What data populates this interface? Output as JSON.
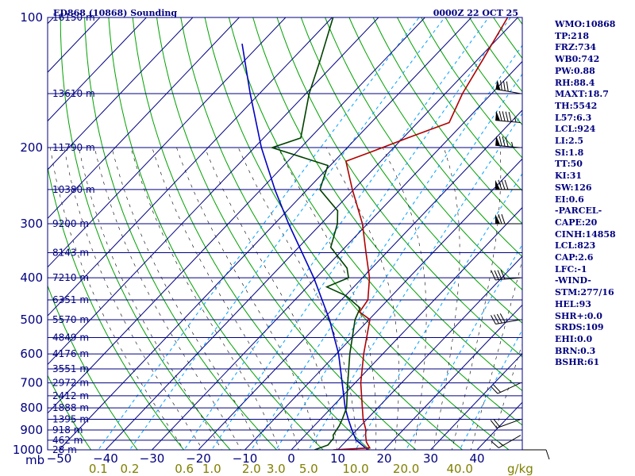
{
  "chart_data": {
    "type": "skew-t log-p sounding",
    "title_left": "ED868 (10868) Sounding",
    "title_right": "0000Z 22 OCT 25",
    "pressure_axis_labels": [
      {
        "p": 100,
        "label": "100"
      },
      {
        "p": 200,
        "label": "200"
      },
      {
        "p": 300,
        "label": "300"
      },
      {
        "p": 400,
        "label": "400"
      },
      {
        "p": 500,
        "label": "500"
      },
      {
        "p": 600,
        "label": "600"
      },
      {
        "p": 700,
        "label": "700"
      },
      {
        "p": 800,
        "label": "800"
      },
      {
        "p": 900,
        "label": "900"
      },
      {
        "p": 1000,
        "label": "1000"
      }
    ],
    "pressure_axis_unit": "mb",
    "height_levels": [
      {
        "p": 100,
        "label": "16150 m"
      },
      {
        "p": 150,
        "label": "13610 m"
      },
      {
        "p": 200,
        "label": "11790 m"
      },
      {
        "p": 250,
        "label": "10380 m"
      },
      {
        "p": 300,
        "label": "9200 m"
      },
      {
        "p": 350,
        "label": "8143 m"
      },
      {
        "p": 400,
        "label": "7210 m"
      },
      {
        "p": 450,
        "label": "6351 m"
      },
      {
        "p": 500,
        "label": "5570 m"
      },
      {
        "p": 550,
        "label": "4849 m"
      },
      {
        "p": 600,
        "label": "4176 m"
      },
      {
        "p": 650,
        "label": "3551 m"
      },
      {
        "p": 700,
        "label": "2972 m"
      },
      {
        "p": 750,
        "label": "2412 m"
      },
      {
        "p": 800,
        "label": "1888 m"
      },
      {
        "p": 850,
        "label": "1395 m"
      },
      {
        "p": 900,
        "label": "918 m"
      },
      {
        "p": 950,
        "label": "462 m"
      },
      {
        "p": 1000,
        "label": "28 m"
      }
    ],
    "temperature_ticks": [
      -50,
      -40,
      -30,
      -20,
      -10,
      0,
      10,
      20,
      30,
      40
    ],
    "temperature_tick_labels": [
      "−50",
      "−40",
      "−30",
      "−20",
      "−10",
      "0",
      "10",
      "20",
      "30",
      "40"
    ],
    "temperature_range_c": [
      -50,
      50
    ],
    "mixing_ratio_labels": [
      "0.1",
      "0.2",
      "0.6",
      "1.0",
      "2.0",
      "3.0",
      "5.0",
      "10.0",
      "20.0",
      "40.0"
    ],
    "mixing_ratio_values": [
      0.1,
      0.2,
      0.6,
      1.0,
      2.0,
      3.0,
      5.0,
      10.0,
      20.0,
      40.0
    ],
    "mixing_ratio_unit": "g/kg",
    "temperature_profile": [
      {
        "p": 1000,
        "t": 9.0
      },
      {
        "p": 990,
        "t": 16.5
      },
      {
        "p": 960,
        "t": 14.6
      },
      {
        "p": 925,
        "t": 13.0
      },
      {
        "p": 900,
        "t": 12.0
      },
      {
        "p": 850,
        "t": 9.2
      },
      {
        "p": 800,
        "t": 6.7
      },
      {
        "p": 700,
        "t": 1.2
      },
      {
        "p": 600,
        "t": -4.1
      },
      {
        "p": 500,
        "t": -9.8
      },
      {
        "p": 480,
        "t": -13.6
      },
      {
        "p": 450,
        "t": -14.3
      },
      {
        "p": 400,
        "t": -18.5
      },
      {
        "p": 350,
        "t": -24.4
      },
      {
        "p": 300,
        "t": -31.1
      },
      {
        "p": 250,
        "t": -40.3
      },
      {
        "p": 215,
        "t": -47.5
      },
      {
        "p": 205,
        "t": -44.1
      },
      {
        "p": 190,
        "t": -39.0
      },
      {
        "p": 175,
        "t": -33.2
      },
      {
        "p": 150,
        "t": -36.3
      },
      {
        "p": 125,
        "t": -38.9
      },
      {
        "p": 100,
        "t": -42.2
      }
    ],
    "dewpoint_profile": [
      {
        "p": 1000,
        "t": 5.0
      },
      {
        "p": 975,
        "t": 6.9
      },
      {
        "p": 940,
        "t": 6.7
      },
      {
        "p": 925,
        "t": 6.0
      },
      {
        "p": 880,
        "t": 5.4
      },
      {
        "p": 850,
        "t": 4.7
      },
      {
        "p": 800,
        "t": 3.3
      },
      {
        "p": 700,
        "t": -1.6
      },
      {
        "p": 600,
        "t": -7.1
      },
      {
        "p": 500,
        "t": -13.0
      },
      {
        "p": 470,
        "t": -14.3
      },
      {
        "p": 440,
        "t": -19.9
      },
      {
        "p": 420,
        "t": -25.8
      },
      {
        "p": 400,
        "t": -23.0
      },
      {
        "p": 380,
        "t": -25.3
      },
      {
        "p": 340,
        "t": -33.1
      },
      {
        "p": 300,
        "t": -36.5
      },
      {
        "p": 280,
        "t": -39.1
      },
      {
        "p": 250,
        "t": -47.3
      },
      {
        "p": 220,
        "t": -50.5
      },
      {
        "p": 200,
        "t": -66.2
      },
      {
        "p": 190,
        "t": -62.0
      },
      {
        "p": 150,
        "t": -69.3
      },
      {
        "p": 125,
        "t": -73.9
      },
      {
        "p": 100,
        "t": -79.8
      }
    ],
    "parcel_profile": [
      {
        "p": 1000,
        "t": 16.5
      },
      {
        "p": 950,
        "t": 12.0
      },
      {
        "p": 900,
        "t": 9.0
      },
      {
        "p": 850,
        "t": 6.0
      },
      {
        "p": 800,
        "t": 3.0
      },
      {
        "p": 700,
        "t": -2.8
      },
      {
        "p": 600,
        "t": -9.5
      },
      {
        "p": 500,
        "t": -18.5
      },
      {
        "p": 400,
        "t": -30.5
      },
      {
        "p": 300,
        "t": -47.0
      },
      {
        "p": 250,
        "t": -57.0
      },
      {
        "p": 200,
        "t": -68.5
      },
      {
        "p": 150,
        "t": -82.0
      },
      {
        "p": 115,
        "t": -94.0
      }
    ],
    "wind_barbs": [
      {
        "p": 1000,
        "dir": 90,
        "spd": 10
      },
      {
        "p": 925,
        "dir": 240,
        "spd": 15
      },
      {
        "p": 850,
        "dir": 250,
        "spd": 20
      },
      {
        "p": 700,
        "dir": 245,
        "spd": 20
      },
      {
        "p": 500,
        "dir": 260,
        "spd": 40
      },
      {
        "p": 400,
        "dir": 265,
        "spd": 40
      },
      {
        "p": 300,
        "dir": 270,
        "spd": 70
      },
      {
        "p": 250,
        "dir": 270,
        "spd": 80
      },
      {
        "p": 200,
        "dir": 275,
        "spd": 85
      },
      {
        "p": 175,
        "dir": 275,
        "spd": 95
      },
      {
        "p": 150,
        "dir": 280,
        "spd": 80
      }
    ],
    "colors": {
      "isobar": "#000080",
      "isotherm": "#000080",
      "dry_adiabat": "#00A000",
      "moist_adiabat": "#000000",
      "mixing_ratio": "#00A0FF",
      "temperature": "#B00000",
      "dewpoint": "#004000",
      "parcel": "#0000C0",
      "text": "#000080",
      "mixing_label": "#808000"
    }
  },
  "indices": [
    "WMO:10868",
    "TP:218",
    "FRZ:734",
    "WB0:742",
    "PW:0.88",
    "RH:88.4",
    "MAXT:18.7",
    "TH:5542",
    "L57:6.3",
    "LCL:924",
    "LI:2.5",
    "SI:1.8",
    "TT:50",
    "KI:31",
    "SW:126",
    "EI:0.6",
    "-PARCEL-",
    "CAPE:20",
    "CINH:14858",
    "LCL:823",
    "CAP:2.6",
    "LFC:-1",
    "-WIND-",
    "STM:277/16",
    "HEL:93",
    "SHR+:0.0",
    "SRDS:109",
    "EHI:0.0",
    "BRN:0.3",
    "BSHR:61"
  ]
}
